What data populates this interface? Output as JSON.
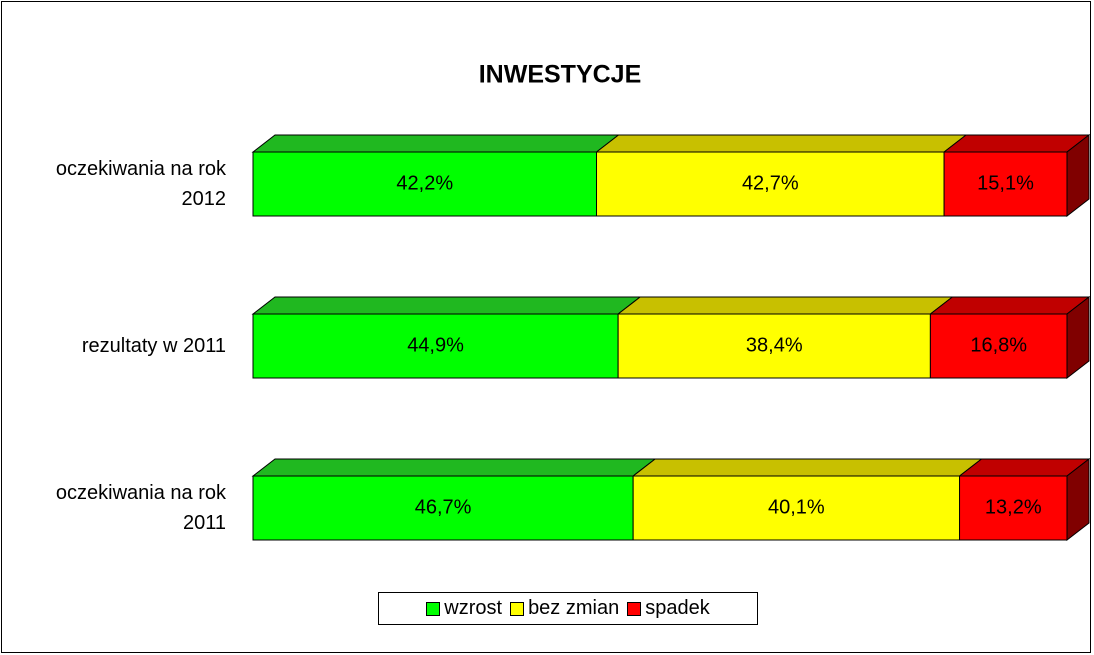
{
  "chart_data": {
    "type": "bar",
    "orientation": "horizontal",
    "stacked": true,
    "three_d": true,
    "title": "INWESTYCJE",
    "categories": [
      "oczekiwania na rok 2012",
      "rezultaty w 2011",
      "oczekiwania na rok 2011"
    ],
    "series": [
      {
        "name": "wzrost",
        "color": "#00ff00",
        "top_color": "#20b820",
        "values": [
          42.2,
          44.9,
          46.7
        ],
        "value_labels": [
          "42,2%",
          "44,9%",
          "46,7%"
        ]
      },
      {
        "name": "bez zmian",
        "color": "#ffff00",
        "top_color": "#c8c000",
        "values": [
          42.7,
          38.4,
          40.1
        ],
        "value_labels": [
          "42,7%",
          "38,4%",
          "40,1%"
        ]
      },
      {
        "name": "spadek",
        "color": "#ff0000",
        "top_color": "#c00000",
        "side_color": "#800000",
        "values": [
          15.1,
          16.8,
          13.2
        ],
        "value_labels": [
          "15,1%",
          "16,8%",
          "13,2%"
        ]
      }
    ],
    "legend": "bottom"
  }
}
